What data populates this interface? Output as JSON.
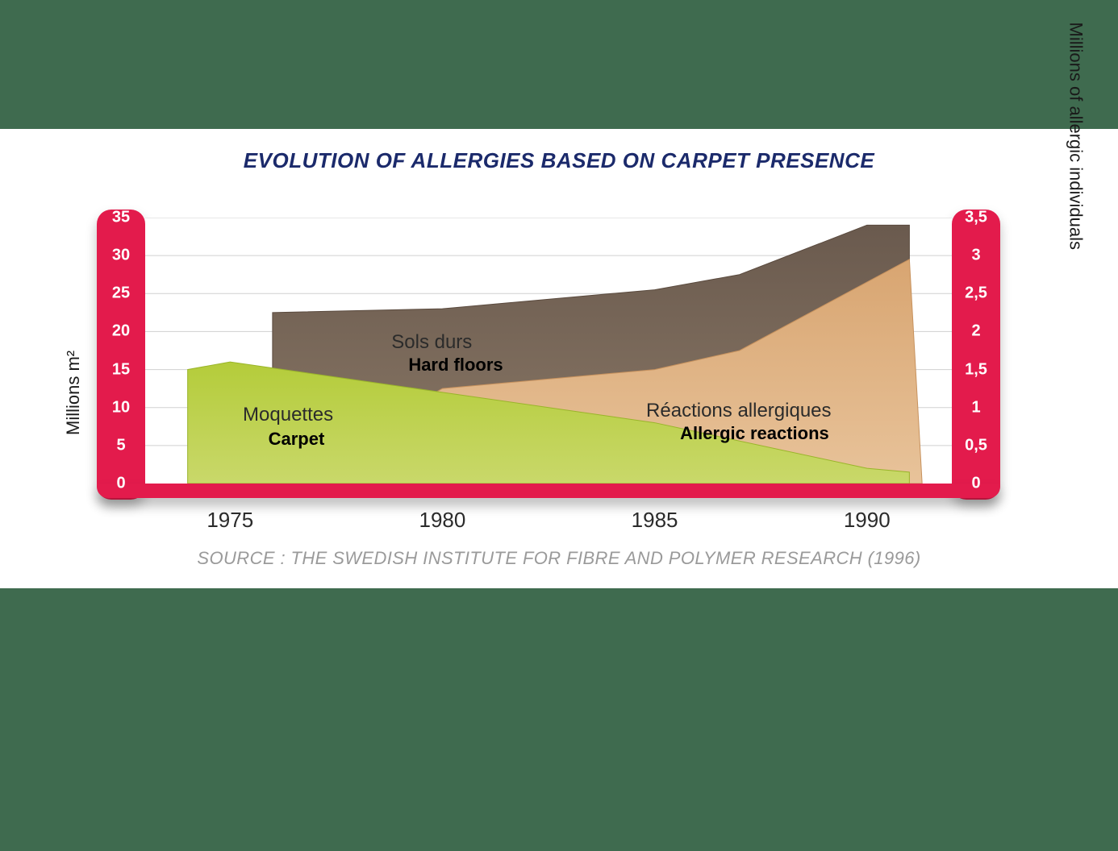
{
  "page": {
    "background_band_color": "#3f6b4f",
    "panel_color": "#ffffff"
  },
  "chart": {
    "type": "area",
    "title": "EVOLUTION OF ALLERGIES BASED ON CARPET PRESENCE",
    "title_color": "#1b2a6b",
    "title_fontsize": 26,
    "source": "SOURCE : THE SWEDISH INSTITUTE FOR FIBRE AND POLYMER RESEARCH (1996)",
    "source_color": "#9a9a9a",
    "source_fontsize": 22,
    "axis_bar_color": "#e31b4c",
    "bottom_bar_color": "#e31b4c",
    "tick_text_color": "#ffffff",
    "grid_color": "#d0d0d0",
    "x": {
      "domain": [
        1973,
        1992
      ],
      "ticks": [
        1975,
        1980,
        1985,
        1990
      ],
      "tick_fontsize": 26,
      "tick_color": "#2b2b2b"
    },
    "y_left": {
      "label": "Millions m²",
      "label_fontsize": 22,
      "domain": [
        0,
        35
      ],
      "ticks": [
        0,
        5,
        10,
        15,
        20,
        25,
        30,
        35
      ],
      "tick_fontsize": 20
    },
    "y_right": {
      "label": "Millions of allergic individuals",
      "label_fontsize": 22,
      "domain": [
        0,
        3.5
      ],
      "ticks": [
        "0",
        "0,5",
        "1",
        "1,5",
        "2",
        "2,5",
        "3",
        "3,5"
      ],
      "tick_fontsize": 20
    },
    "series": {
      "hard_floors": {
        "label_fr": "Sols durs",
        "label_en": "Hard floors",
        "axis": "left",
        "x": [
          1976,
          1980,
          1985,
          1987,
          1990,
          1991
        ],
        "y": [
          22.5,
          23,
          25.5,
          27.5,
          34,
          34
        ],
        "color_top": "#6a5a4e",
        "color_bottom": "#8a7866",
        "stroke": "#5a4a3e",
        "label_pos_fr": {
          "x": 1978.8,
          "y": 20
        },
        "label_pos_en": {
          "x": 1979.2,
          "y": 17
        }
      },
      "allergic_reactions": {
        "label_fr": "Réactions allergiques",
        "label_en": "Allergic reactions",
        "axis": "right",
        "x": [
          1976,
          1980,
          1985,
          1987,
          1991,
          1991.3
        ],
        "y": [
          0.0,
          1.25,
          1.5,
          1.75,
          2.95,
          0.0
        ],
        "color_top": "#d8a571",
        "color_bottom": "#e8c39a",
        "stroke": "#c7925e",
        "label_pos_fr": {
          "x": 1984.8,
          "y": 11
        },
        "label_pos_en": {
          "x": 1985.6,
          "y": 8
        }
      },
      "carpet": {
        "label_fr": "Moquettes",
        "label_en": "Carpet",
        "axis": "left",
        "x": [
          1974,
          1975,
          1980,
          1985,
          1990,
          1991
        ],
        "y": [
          15,
          16,
          12,
          8,
          2,
          1.5
        ],
        "color_top": "#b4cc3a",
        "color_bottom": "#c9d86a",
        "stroke": "#9ab52a",
        "label_pos_fr": {
          "x": 1975.3,
          "y": 10.5
        },
        "label_pos_en": {
          "x": 1975.9,
          "y": 7.2
        }
      }
    }
  }
}
